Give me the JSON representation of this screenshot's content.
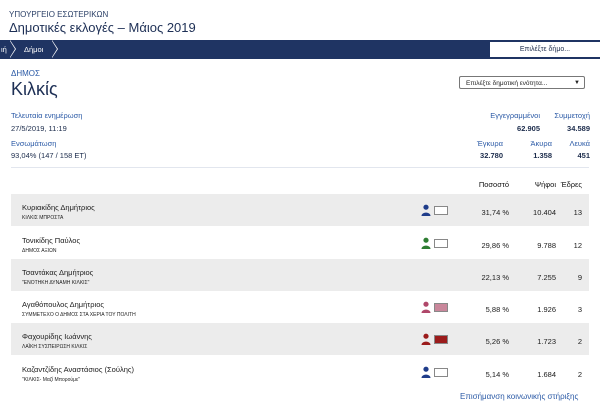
{
  "header": {
    "ministry": "ΥΠΟΥΡΓΕΙΟ ΕΣΩΤΕΡΙΚΩΝ",
    "title": "Δημοτικές εκλογές – Μάιος 2019"
  },
  "nav": {
    "crumb_1": "ιή",
    "crumb_2": "Δήμοι",
    "select_municipality": "Επιλέξτε δήμο..."
  },
  "municipality": {
    "label": "ΔΗΜΟΣ",
    "name": "Κιλκίς",
    "unit_select": "Επιλέξτε δημοτική ενότητα..."
  },
  "summary": {
    "last_update_label": "Τελευταία ενημέρωση",
    "last_update_value": "27/5/2019, 11:19",
    "integration_label": "Ενσωμάτωση",
    "integration_value": "93,04% (147 / 158 ΕΤ)",
    "registered_label": "Εγγεγραμμένοι",
    "registered_value": "62.905",
    "turnout_label": "Συμμετοχή",
    "turnout_value": "34.589",
    "valid_label": "Έγκυρα",
    "valid_value": "32.780",
    "invalid_label": "Άκυρα",
    "invalid_value": "1.358",
    "blank_label": "Λευκά",
    "blank_value": "451"
  },
  "table": {
    "headers": {
      "percent": "Ποσοστό",
      "votes": "Ψήφοι",
      "seats": "Έδρες"
    },
    "rows": [
      {
        "name": "Κυριακίδης Δημήτριος",
        "party": "ΚΙΛΚΙΣ ΜΠΡΟΣΤΑ",
        "percent": "31,74 %",
        "votes": "10.404",
        "seats": "13",
        "person_color": "#1f3c8a",
        "swatch_color": "#ffffff",
        "has_icon": true
      },
      {
        "name": "Τονικίδης Παύλος",
        "party": "ΔΗΜΟΣ ΑΞΙΩΝ",
        "percent": "29,86 %",
        "votes": "9.788",
        "seats": "12",
        "person_color": "#2e7d32",
        "swatch_color": "#ffffff",
        "has_icon": true
      },
      {
        "name": "Τσαντάκας Δημήτριος",
        "party": "\"ΕΝΟΤΗΚΗ ΔΥΝΑΜΗ ΚΙΛΚΙΣ\"",
        "percent": "22,13 %",
        "votes": "7.255",
        "seats": "9",
        "person_color": "",
        "swatch_color": "",
        "has_icon": false
      },
      {
        "name": "Αγαθόπουλος Δημήτριος",
        "party": "ΣΥΜΜΕΤΕΧΟ Ο ΔΗΜΟΣ ΣΤΑ ΧΕΡΙΑ ΤΟΥ ΠΟΛΙΤΗ",
        "percent": "5,88 %",
        "votes": "1.926",
        "seats": "3",
        "person_color": "#b0476a",
        "swatch_color": "#c9879b",
        "has_icon": true
      },
      {
        "name": "Φαχουρίδης Ιωάννης",
        "party": "ΛΑΪΚΗ ΣΥΣΠΕΙΡΩΣΗ ΚΙΛΚΙΣ",
        "percent": "5,26 %",
        "votes": "1.723",
        "seats": "2",
        "person_color": "#9b1b1b",
        "swatch_color": "#9b1b1b",
        "has_icon": true
      },
      {
        "name": "Καζαντζίδης Αναστάσιος (Σούλης)",
        "party": "\"ΚΙΛΚΙΣ- Μαζί Μπορούμε\"",
        "percent": "5,14 %",
        "votes": "1.684",
        "seats": "2",
        "person_color": "#1f3c8a",
        "swatch_color": "#ffffff",
        "has_icon": true
      }
    ]
  },
  "footer": {
    "link": "Επισήμανση κοινωνικής στήριξης"
  }
}
